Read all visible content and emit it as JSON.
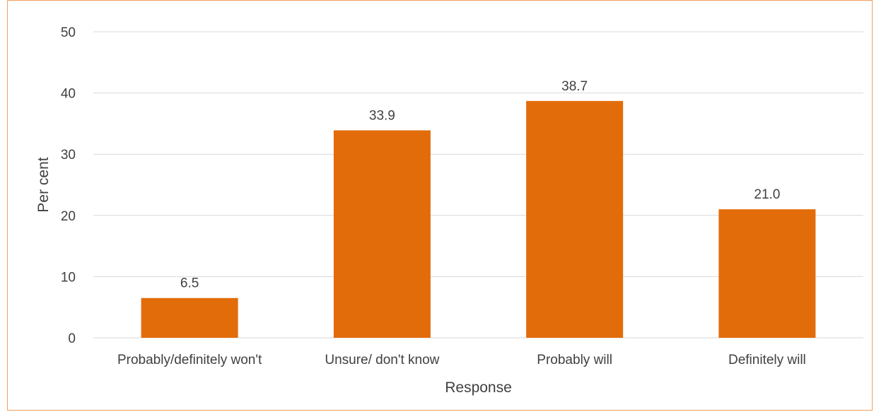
{
  "chart_data": {
    "type": "bar",
    "categories": [
      "Probably/definitely won't",
      "Unsure/ don't know",
      "Probably will",
      "Definitely will"
    ],
    "values": [
      6.5,
      33.9,
      38.7,
      21.0
    ],
    "data_labels": [
      "6.5",
      "33.9",
      "38.7",
      "21.0"
    ],
    "title": "",
    "xlabel": "Response",
    "ylabel": "Per cent",
    "ylim": [
      0,
      50
    ],
    "yticks": [
      0,
      10,
      20,
      30,
      40,
      50
    ],
    "grid": true,
    "legend": "none",
    "bar_color": "#e36c0a",
    "border_color": "#f0a060"
  }
}
